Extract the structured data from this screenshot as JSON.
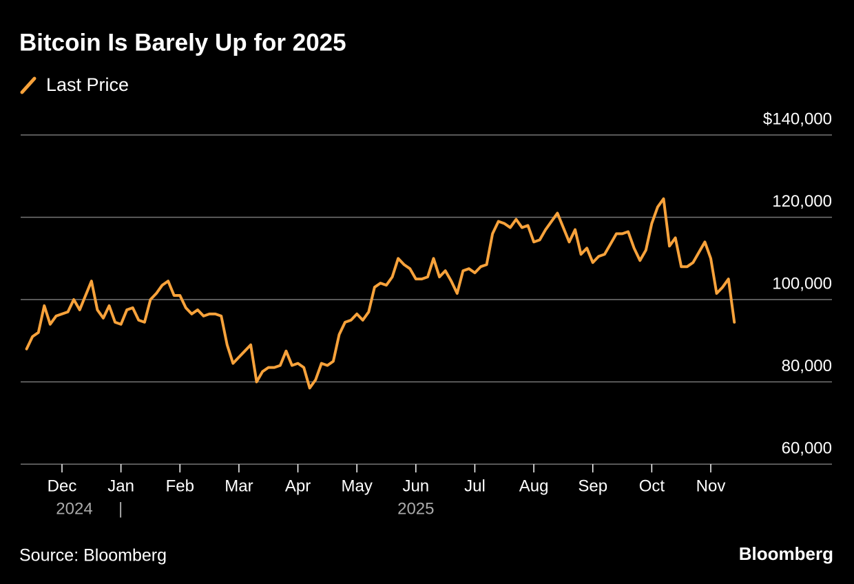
{
  "chart_data": {
    "type": "line",
    "title": "Bitcoin Is Barely Up for 2025",
    "source": "Source: Bloomberg",
    "brand": "Bloomberg",
    "year_labels": [
      "2024",
      "2025"
    ],
    "categories": [
      null,
      null,
      null,
      null,
      null,
      null,
      "Dec",
      null,
      null,
      null,
      null,
      null,
      null,
      null,
      null,
      null,
      "Jan",
      null,
      null,
      null,
      null,
      null,
      null,
      null,
      null,
      null,
      "Feb",
      null,
      null,
      null,
      null,
      null,
      null,
      null,
      null,
      null,
      "Mar",
      null,
      null,
      null,
      null,
      null,
      null,
      null,
      null,
      null,
      "Apr",
      null,
      null,
      null,
      null,
      null,
      null,
      null,
      null,
      null,
      "May",
      null,
      null,
      null,
      null,
      null,
      null,
      null,
      null,
      null,
      "Jun",
      null,
      null,
      null,
      null,
      null,
      null,
      null,
      null,
      null,
      "Jul",
      null,
      null,
      null,
      null,
      null,
      null,
      null,
      null,
      null,
      "Aug",
      null,
      null,
      null,
      null,
      null,
      null,
      null,
      null,
      null,
      "Sep",
      null,
      null,
      null,
      null,
      null,
      null,
      null,
      null,
      null,
      "Oct",
      null,
      null,
      null,
      null,
      null,
      null,
      null,
      null,
      null,
      "Nov",
      null,
      null,
      null,
      null
    ],
    "series": [
      {
        "name": "Last Price",
        "color": "#f7a23b",
        "values": [
          88000,
          91000,
          92000,
          98500,
          94000,
          96000,
          96500,
          97000,
          100000,
          97500,
          101000,
          104500,
          97500,
          95500,
          98500,
          94500,
          94000,
          97500,
          98000,
          95000,
          94500,
          100000,
          101500,
          103500,
          104500,
          101000,
          101000,
          98000,
          96500,
          97500,
          96000,
          96500,
          96500,
          96000,
          89000,
          84500,
          86000,
          87500,
          89000,
          80000,
          82500,
          83500,
          83500,
          84000,
          87500,
          84000,
          84500,
          83500,
          78500,
          80500,
          84500,
          84000,
          85000,
          91500,
          94500,
          95000,
          96500,
          95000,
          97000,
          103000,
          104000,
          103500,
          105500,
          110000,
          108500,
          107500,
          105000,
          105000,
          105500,
          110000,
          105500,
          107000,
          104500,
          101500,
          107000,
          107500,
          106500,
          108000,
          108500,
          116000,
          119000,
          118500,
          117500,
          119500,
          117500,
          118000,
          114000,
          114500,
          117000,
          119000,
          121000,
          117500,
          114000,
          117000,
          111000,
          112500,
          109000,
          110500,
          111000,
          113500,
          116000,
          116000,
          116500,
          112500,
          109500,
          112000,
          118500,
          122500,
          124500,
          113000,
          115000,
          108000,
          108000,
          109000,
          111500,
          114000,
          110000,
          101500,
          103000,
          105000,
          94500
        ]
      }
    ],
    "ylim": [
      60000,
      140000
    ],
    "yticks": [
      {
        "value": 60000,
        "label": "60,000"
      },
      {
        "value": 80000,
        "label": "80,000"
      },
      {
        "value": 100000,
        "label": "100,000"
      },
      {
        "value": 120000,
        "label": "120,000"
      },
      {
        "value": 140000,
        "label": "$140,000"
      }
    ],
    "grid": true
  }
}
